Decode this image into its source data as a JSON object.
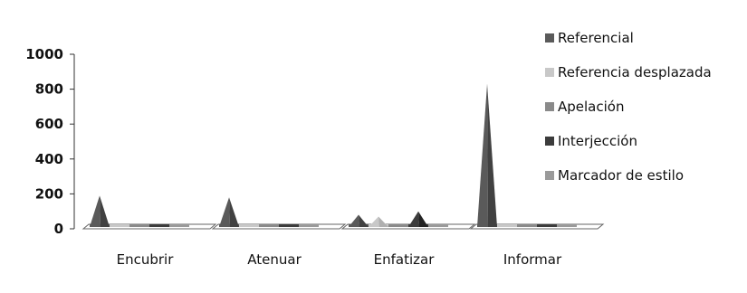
{
  "chart_data": {
    "type": "area",
    "variant": "3d-peak",
    "categories": [
      "Encubrir",
      "Atenuar",
      "Enfatizar",
      "Informar"
    ],
    "series": [
      {
        "name": "Referencial",
        "values": [
          190,
          180,
          80,
          830
        ],
        "color": "#5a5a5a"
      },
      {
        "name": "Referencia desplazada",
        "values": [
          0,
          0,
          70,
          0
        ],
        "color": "#c8c8c8"
      },
      {
        "name": "Apelación",
        "values": [
          0,
          0,
          0,
          0
        ],
        "color": "#8a8a8a"
      },
      {
        "name": "Interjección",
        "values": [
          0,
          0,
          100,
          0
        ],
        "color": "#3c3c3c"
      },
      {
        "name": "Marcador de estilo",
        "values": [
          0,
          0,
          0,
          0
        ],
        "color": "#9a9a9a"
      }
    ],
    "yticks": [
      "0",
      "200",
      "400",
      "600",
      "800",
      "1000"
    ],
    "ylim": [
      0,
      1000
    ],
    "legend_position": "right",
    "grid": false
  }
}
